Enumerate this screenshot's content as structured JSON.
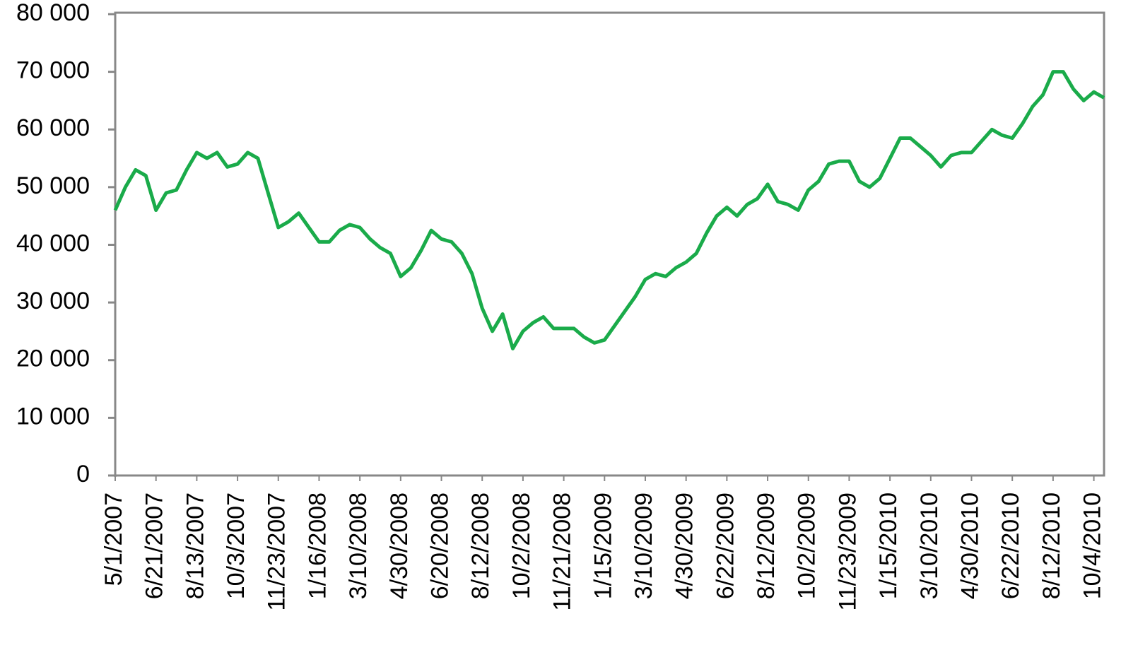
{
  "chart_data": {
    "type": "line",
    "color": "#1aab4a",
    "ylim": [
      0,
      80000
    ],
    "yticks": [
      0,
      {
        "value": 10000,
        "label": "10 000"
      },
      {
        "value": 20000,
        "label": "20 000"
      },
      {
        "value": 30000,
        "label": "30 000"
      },
      {
        "value": 40000,
        "label": "40 000"
      },
      {
        "value": 50000,
        "label": "50 000"
      },
      {
        "value": 60000,
        "label": "60 000"
      },
      {
        "value": 70000,
        "label": "70 000"
      },
      {
        "value": 80000,
        "label": "80 000"
      }
    ],
    "categories": [
      "5/1/2007",
      null,
      null,
      null,
      "6/21/2007",
      null,
      null,
      null,
      "8/13/2007",
      null,
      null,
      null,
      "10/3/2007",
      null,
      null,
      null,
      "11/23/2007",
      null,
      null,
      null,
      "1/16/2008",
      null,
      null,
      null,
      "3/10/2008",
      null,
      null,
      null,
      "4/30/2008",
      null,
      null,
      null,
      "6/20/2008",
      null,
      null,
      null,
      "8/12/2008",
      null,
      null,
      null,
      "10/2/2008",
      null,
      null,
      null,
      "11/21/2008",
      null,
      null,
      null,
      "1/15/2009",
      null,
      null,
      null,
      "3/10/2009",
      null,
      null,
      null,
      "4/30/2009",
      null,
      null,
      null,
      "6/22/2009",
      null,
      null,
      null,
      "8/12/2009",
      null,
      null,
      null,
      "10/2/2009",
      null,
      null,
      null,
      "11/23/2009",
      null,
      null,
      null,
      "1/15/2010",
      null,
      null,
      null,
      "3/10/2010",
      null,
      null,
      null,
      "4/30/2010",
      null,
      null,
      null,
      "6/22/2010",
      null,
      null,
      null,
      "8/12/2010",
      null,
      null,
      null,
      "10/4/2010",
      null
    ],
    "values": [
      46000,
      50000,
      53000,
      52000,
      46000,
      49000,
      49500,
      53000,
      56000,
      55000,
      56000,
      53500,
      54000,
      56000,
      55000,
      49000,
      43000,
      44000,
      45500,
      43000,
      40500,
      40500,
      42500,
      43500,
      43000,
      41000,
      39500,
      38500,
      34500,
      36000,
      39000,
      42500,
      41000,
      40500,
      38500,
      35000,
      29000,
      25000,
      28000,
      22000,
      25000,
      26500,
      27500,
      25500,
      25500,
      25500,
      24000,
      23000,
      23500,
      26000,
      28500,
      31000,
      34000,
      35000,
      34500,
      36000,
      37000,
      38500,
      42000,
      45000,
      46500,
      45000,
      47000,
      48000,
      50500,
      47500,
      47000,
      46000,
      49500,
      51000,
      54000,
      54500,
      54500,
      51000,
      50000,
      51500,
      55000,
      58500,
      58500,
      57000,
      55500,
      53500,
      55500,
      56000,
      56000,
      58000,
      60000,
      59000,
      58500,
      61000,
      64000,
      66000,
      70000,
      70000,
      67000,
      65000,
      66500,
      65500
    ]
  }
}
